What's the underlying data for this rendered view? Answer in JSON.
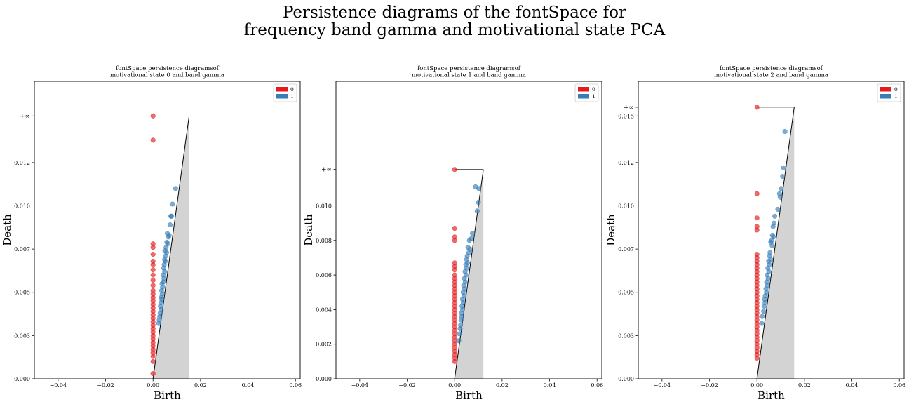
{
  "suptitle": "Persistence diagrams of the fontSpace for\nfrequency band gamma and motivational state PCA",
  "colors": {
    "h0": "#e41a1c",
    "h1": "#377eb8",
    "diagonal_fill": "#d3d3d3"
  },
  "chart_data": [
    {
      "type": "scatter",
      "title": "fontSpace  persistence  diagramsof\nmotivational state 0 and  band  gamma",
      "xlabel": "Birth",
      "ylabel": "Death",
      "xlim": [
        -0.05,
        0.062
      ],
      "ylim": [
        0,
        0.0172
      ],
      "xticks": [
        -0.04,
        -0.02,
        0.0,
        0.02,
        0.04,
        0.06
      ],
      "xticklabels": [
        "−0.04",
        "−0.02",
        "0.00",
        "0.02",
        "0.04",
        "0.06"
      ],
      "yticks": [
        0,
        0.0025,
        0.005,
        0.0075,
        0.01,
        0.0125
      ],
      "yticklabels": [
        "0.000",
        "0.003",
        "0.005",
        "0.007",
        "0.010",
        "0.012"
      ],
      "inf_label": "+∞",
      "inf_y": 0.0152,
      "diagonal_max": 0.0152,
      "legend": [
        "0",
        "1"
      ],
      "legend_loc": "top-right",
      "series": [
        {
          "name": "0",
          "points": [
            [
              0,
              0.0152
            ],
            [
              0,
              0.0138
            ],
            [
              0,
              0.0078
            ],
            [
              0,
              0.0076
            ],
            [
              0,
              0.0072
            ],
            [
              0,
              0.0068
            ],
            [
              0,
              0.0066
            ],
            [
              0,
              0.0063
            ],
            [
              0,
              0.006
            ],
            [
              0,
              0.0057
            ],
            [
              0,
              0.0054
            ],
            [
              0,
              0.0051
            ],
            [
              0,
              0.0049
            ],
            [
              0,
              0.0047
            ],
            [
              0,
              0.0045
            ],
            [
              0,
              0.0043
            ],
            [
              0,
              0.0041
            ],
            [
              0,
              0.0039
            ],
            [
              0,
              0.0037
            ],
            [
              0,
              0.0035
            ],
            [
              0,
              0.0033
            ],
            [
              0,
              0.0031
            ],
            [
              0,
              0.0029
            ],
            [
              0,
              0.0027
            ],
            [
              0,
              0.0025
            ],
            [
              0,
              0.0023
            ],
            [
              0,
              0.0021
            ],
            [
              0,
              0.0019
            ],
            [
              0,
              0.0017
            ],
            [
              0,
              0.0015
            ],
            [
              0,
              0.0013
            ],
            [
              0,
              0.001
            ],
            [
              0,
              0.0003
            ]
          ]
        },
        {
          "name": "1",
          "points": [
            [
              0.0095,
              0.011
            ],
            [
              0.0082,
              0.0101
            ],
            [
              0.0078,
              0.0094
            ],
            [
              0.0075,
              0.0094
            ],
            [
              0.0072,
              0.0089
            ],
            [
              0.006,
              0.0084
            ],
            [
              0.0068,
              0.0083
            ],
            [
              0.0065,
              0.0082
            ],
            [
              0.0058,
              0.0079
            ],
            [
              0.0062,
              0.0078
            ],
            [
              0.0055,
              0.0076
            ],
            [
              0.005,
              0.0074
            ],
            [
              0.0057,
              0.0073
            ],
            [
              0.0053,
              0.0071
            ],
            [
              0.0049,
              0.0069
            ],
            [
              0.0052,
              0.0068
            ],
            [
              0.0047,
              0.0066
            ],
            [
              0.0045,
              0.0064
            ],
            [
              0.0049,
              0.0062
            ],
            [
              0.0042,
              0.006
            ],
            [
              0.0046,
              0.0058
            ],
            [
              0.0043,
              0.0056
            ],
            [
              0.0038,
              0.0055
            ],
            [
              0.004,
              0.0053
            ],
            [
              0.0036,
              0.0051
            ],
            [
              0.0039,
              0.0049
            ],
            [
              0.0034,
              0.0047
            ],
            [
              0.0037,
              0.0046
            ],
            [
              0.0033,
              0.0044
            ],
            [
              0.0031,
              0.0042
            ],
            [
              0.0034,
              0.004
            ],
            [
              0.003,
              0.0038
            ],
            [
              0.0028,
              0.0036
            ],
            [
              0.0026,
              0.0034
            ],
            [
              0.0024,
              0.0032
            ]
          ]
        }
      ]
    },
    {
      "type": "scatter",
      "title": "fontSpace  persistence  diagramsof\nmotivational state 1 and  band  gamma",
      "xlabel": "Birth",
      "ylabel": "Death",
      "xlim": [
        -0.05,
        0.062
      ],
      "ylim": [
        0,
        0.0172
      ],
      "xticks": [
        -0.04,
        -0.02,
        0.0,
        0.02,
        0.04,
        0.06
      ],
      "xticklabels": [
        "−0.04",
        "−0.02",
        "0.00",
        "0.02",
        "0.04",
        "0.06"
      ],
      "yticks": [
        0,
        0.002,
        0.004,
        0.006,
        0.008,
        0.01
      ],
      "yticklabels": [
        "0.000",
        "0.002",
        "0.004",
        "0.006",
        "0.008",
        "0.010"
      ],
      "inf_label": "+∞",
      "inf_y": 0.0121,
      "diagonal_max": 0.0121,
      "legend": [
        "0",
        "1"
      ],
      "legend_loc": "top-right",
      "series": [
        {
          "name": "0",
          "points": [
            [
              0,
              0.0121
            ],
            [
              0,
              0.0087
            ],
            [
              0,
              0.0082
            ],
            [
              0,
              0.008
            ],
            [
              0,
              0.0067
            ],
            [
              0,
              0.0065
            ],
            [
              0,
              0.0063
            ],
            [
              0,
              0.006
            ],
            [
              0,
              0.0058
            ],
            [
              0,
              0.0056
            ],
            [
              0,
              0.0054
            ],
            [
              0,
              0.0052
            ],
            [
              0,
              0.005
            ],
            [
              0,
              0.0048
            ],
            [
              0,
              0.0046
            ],
            [
              0,
              0.0044
            ],
            [
              0,
              0.0042
            ],
            [
              0,
              0.004
            ],
            [
              0,
              0.0038
            ],
            [
              0,
              0.0036
            ],
            [
              0,
              0.0034
            ],
            [
              0,
              0.0032
            ],
            [
              0,
              0.003
            ],
            [
              0,
              0.0028
            ],
            [
              0,
              0.0026
            ],
            [
              0,
              0.0024
            ],
            [
              0,
              0.0022
            ],
            [
              0,
              0.002
            ],
            [
              0,
              0.0018
            ],
            [
              0,
              0.0016
            ],
            [
              0,
              0.0014
            ],
            [
              0,
              0.0012
            ],
            [
              0,
              0.001
            ]
          ]
        },
        {
          "name": "1",
          "points": [
            [
              0.0088,
              0.0111
            ],
            [
              0.0102,
              0.011
            ],
            [
              0.01,
              0.0102
            ],
            [
              0.0095,
              0.0097
            ],
            [
              0.0075,
              0.0084
            ],
            [
              0.007,
              0.0081
            ],
            [
              0.0062,
              0.008
            ],
            [
              0.0056,
              0.0076
            ],
            [
              0.0065,
              0.0075
            ],
            [
              0.006,
              0.0073
            ],
            [
              0.0053,
              0.0071
            ],
            [
              0.005,
              0.0069
            ],
            [
              0.0055,
              0.0067
            ],
            [
              0.0047,
              0.0066
            ],
            [
              0.0051,
              0.0064
            ],
            [
              0.0044,
              0.0062
            ],
            [
              0.0048,
              0.006
            ],
            [
              0.0041,
              0.0058
            ],
            [
              0.0045,
              0.0056
            ],
            [
              0.0038,
              0.0054
            ],
            [
              0.0042,
              0.0052
            ],
            [
              0.0036,
              0.005
            ],
            [
              0.0039,
              0.0048
            ],
            [
              0.0033,
              0.0046
            ],
            [
              0.0036,
              0.0044
            ],
            [
              0.0031,
              0.0042
            ],
            [
              0.0033,
              0.004
            ],
            [
              0.0029,
              0.0038
            ],
            [
              0.003,
              0.0036
            ],
            [
              0.0027,
              0.0034
            ],
            [
              0.0025,
              0.0031
            ],
            [
              0.0023,
              0.0029
            ],
            [
              0.002,
              0.0026
            ],
            [
              0.0017,
              0.0022
            ]
          ]
        }
      ]
    },
    {
      "type": "scatter",
      "title": "fontSpace  persistence  diagramsof\nmotivational state 2 and  band  gamma",
      "xlabel": "Birth",
      "ylabel": "Death",
      "xlim": [
        -0.05,
        0.062
      ],
      "ylim": [
        0,
        0.0172
      ],
      "xticks": [
        -0.04,
        -0.02,
        0.0,
        0.02,
        0.04,
        0.06
      ],
      "xticklabels": [
        "−0.04",
        "−0.02",
        "0.00",
        "0.02",
        "0.04",
        "0.06"
      ],
      "yticks": [
        0,
        0.0025,
        0.005,
        0.0075,
        0.01,
        0.0125,
        0.0152
      ],
      "yticklabels": [
        "0.000",
        "0.003",
        "0.005",
        "0.007",
        "0.010",
        "0.012",
        "0.015"
      ],
      "inf_label": "+∞",
      "inf_y": 0.0157,
      "diagonal_max": 0.0157,
      "legend": [
        "0",
        "1"
      ],
      "legend_loc": "top-right",
      "series": [
        {
          "name": "0",
          "points": [
            [
              0,
              0.0157
            ],
            [
              0,
              0.0107
            ],
            [
              0,
              0.0093
            ],
            [
              0,
              0.0088
            ],
            [
              0,
              0.0086
            ],
            [
              0,
              0.0072
            ],
            [
              0,
              0.007
            ],
            [
              0,
              0.0068
            ],
            [
              0,
              0.0066
            ],
            [
              0,
              0.0064
            ],
            [
              0,
              0.0062
            ],
            [
              0,
              0.006
            ],
            [
              0,
              0.0058
            ],
            [
              0,
              0.0056
            ],
            [
              0,
              0.0054
            ],
            [
              0,
              0.0052
            ],
            [
              0,
              0.005
            ],
            [
              0,
              0.0048
            ],
            [
              0,
              0.0046
            ],
            [
              0,
              0.0044
            ],
            [
              0,
              0.0042
            ],
            [
              0,
              0.004
            ],
            [
              0,
              0.0038
            ],
            [
              0,
              0.0036
            ],
            [
              0,
              0.0034
            ],
            [
              0,
              0.0032
            ],
            [
              0,
              0.003
            ],
            [
              0,
              0.0028
            ],
            [
              0,
              0.0026
            ],
            [
              0,
              0.0024
            ],
            [
              0,
              0.0022
            ],
            [
              0,
              0.002
            ],
            [
              0,
              0.0018
            ],
            [
              0,
              0.0016
            ],
            [
              0,
              0.0014
            ],
            [
              0,
              0.0012
            ]
          ]
        },
        {
          "name": "1",
          "points": [
            [
              0.0118,
              0.0143
            ],
            [
              0.0112,
              0.0122
            ],
            [
              0.0108,
              0.0117
            ],
            [
              0.0102,
              0.011
            ],
            [
              0.0098,
              0.0105
            ],
            [
              0.0095,
              0.0107
            ],
            [
              0.0088,
              0.0098
            ],
            [
              0.0075,
              0.0094
            ],
            [
              0.0072,
              0.009
            ],
            [
              0.0068,
              0.0088
            ],
            [
              0.0065,
              0.0083
            ],
            [
              0.007,
              0.0082
            ],
            [
              0.0062,
              0.008
            ],
            [
              0.0058,
              0.0079
            ],
            [
              0.0064,
              0.0077
            ],
            [
              0.0055,
              0.0073
            ],
            [
              0.0052,
              0.0071
            ],
            [
              0.0058,
              0.0069
            ],
            [
              0.0049,
              0.0068
            ],
            [
              0.0053,
              0.0066
            ],
            [
              0.0046,
              0.0064
            ],
            [
              0.005,
              0.0062
            ],
            [
              0.0043,
              0.006
            ],
            [
              0.0047,
              0.0058
            ],
            [
              0.0041,
              0.0056
            ],
            [
              0.0044,
              0.0054
            ],
            [
              0.0038,
              0.0052
            ],
            [
              0.004,
              0.005
            ],
            [
              0.0035,
              0.0048
            ],
            [
              0.0032,
              0.0046
            ],
            [
              0.0034,
              0.0044
            ],
            [
              0.003,
              0.0042
            ],
            [
              0.0028,
              0.0039
            ],
            [
              0.0022,
              0.0036
            ],
            [
              0.002,
              0.0032
            ]
          ]
        }
      ]
    }
  ]
}
